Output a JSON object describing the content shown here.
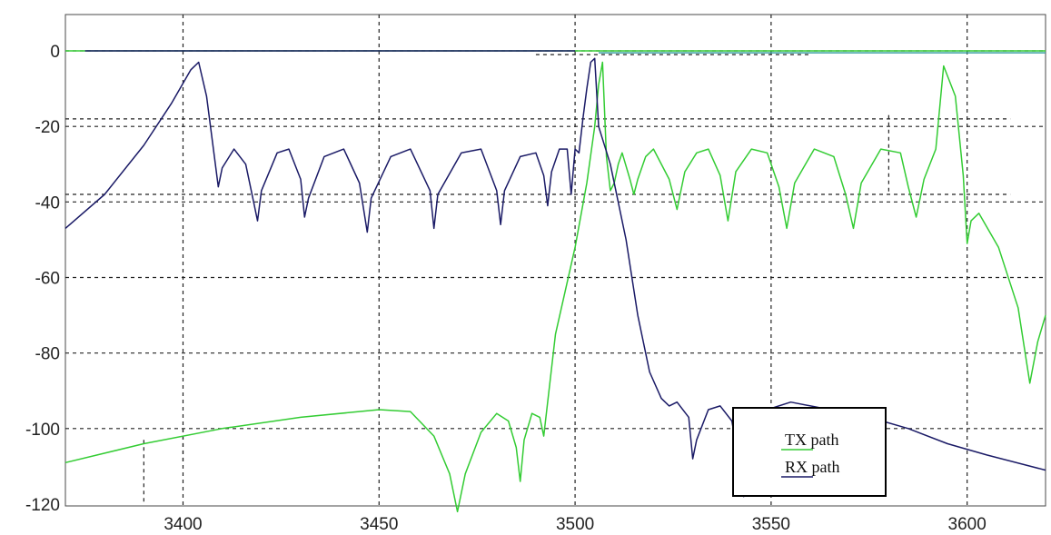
{
  "chart_data": {
    "type": "line",
    "xlim": [
      3370,
      3620
    ],
    "ylim": [
      -120,
      10
    ],
    "xticks": [
      3400,
      3450,
      3500,
      3550,
      3600
    ],
    "yticks": [
      0,
      -20,
      -40,
      -60,
      -80,
      -100,
      -120
    ],
    "grid": true,
    "legend_position": "bottom-right",
    "series": [
      {
        "name": "TX path",
        "color": "#33cc33",
        "points": [
          [
            3370,
            -109
          ],
          [
            3390,
            -104
          ],
          [
            3410,
            -100
          ],
          [
            3430,
            -97
          ],
          [
            3450,
            -95
          ],
          [
            3458,
            -95.5
          ],
          [
            3464,
            -102
          ],
          [
            3468,
            -112
          ],
          [
            3470,
            -122
          ],
          [
            3472,
            -112
          ],
          [
            3476,
            -101
          ],
          [
            3480,
            -96
          ],
          [
            3483,
            -98
          ],
          [
            3485,
            -105
          ],
          [
            3486,
            -114
          ],
          [
            3487,
            -103
          ],
          [
            3489,
            -96
          ],
          [
            3491,
            -97
          ],
          [
            3492,
            -102
          ],
          [
            3495,
            -75
          ],
          [
            3500,
            -52
          ],
          [
            3503,
            -35
          ],
          [
            3505,
            -20
          ],
          [
            3506,
            -9
          ],
          [
            3507,
            -3
          ],
          [
            3508,
            -28
          ],
          [
            3509,
            -37
          ],
          [
            3510,
            -35
          ],
          [
            3511,
            -30
          ],
          [
            3512,
            -27
          ],
          [
            3514,
            -34
          ],
          [
            3515,
            -38
          ],
          [
            3516,
            -34
          ],
          [
            3518,
            -28
          ],
          [
            3520,
            -26
          ],
          [
            3524,
            -34
          ],
          [
            3526,
            -42
          ],
          [
            3528,
            -32
          ],
          [
            3531,
            -27
          ],
          [
            3534,
            -26
          ],
          [
            3537,
            -33
          ],
          [
            3539,
            -45
          ],
          [
            3541,
            -32
          ],
          [
            3545,
            -26
          ],
          [
            3549,
            -27
          ],
          [
            3552,
            -36
          ],
          [
            3554,
            -47
          ],
          [
            3556,
            -35
          ],
          [
            3561,
            -26
          ],
          [
            3566,
            -28
          ],
          [
            3569,
            -38
          ],
          [
            3571,
            -47
          ],
          [
            3573,
            -35
          ],
          [
            3578,
            -26
          ],
          [
            3583,
            -27
          ],
          [
            3585,
            -36
          ],
          [
            3587,
            -44
          ],
          [
            3589,
            -34
          ],
          [
            3592,
            -26
          ],
          [
            3594,
            -4
          ],
          [
            3597,
            -12
          ],
          [
            3599,
            -33
          ],
          [
            3600,
            -51
          ],
          [
            3601,
            -45
          ],
          [
            3603,
            -43
          ],
          [
            3608,
            -52
          ],
          [
            3613,
            -68
          ],
          [
            3616,
            -88
          ],
          [
            3618,
            -77
          ],
          [
            3620,
            -70
          ]
        ]
      },
      {
        "name": "RX path",
        "color": "#1a1a66",
        "points": [
          [
            3370,
            -47
          ],
          [
            3380,
            -38
          ],
          [
            3390,
            -25
          ],
          [
            3397,
            -14
          ],
          [
            3402,
            -5
          ],
          [
            3404,
            -3
          ],
          [
            3406,
            -12
          ],
          [
            3408,
            -28
          ],
          [
            3409,
            -36
          ],
          [
            3410,
            -31
          ],
          [
            3413,
            -26
          ],
          [
            3416,
            -30
          ],
          [
            3418,
            -40
          ],
          [
            3419,
            -45
          ],
          [
            3420,
            -37
          ],
          [
            3424,
            -27
          ],
          [
            3427,
            -26
          ],
          [
            3430,
            -34
          ],
          [
            3431,
            -44
          ],
          [
            3432,
            -39
          ],
          [
            3436,
            -28
          ],
          [
            3441,
            -26
          ],
          [
            3445,
            -35
          ],
          [
            3447,
            -48
          ],
          [
            3448,
            -39
          ],
          [
            3453,
            -28
          ],
          [
            3458,
            -26
          ],
          [
            3463,
            -37
          ],
          [
            3464,
            -47
          ],
          [
            3465,
            -38
          ],
          [
            3471,
            -27
          ],
          [
            3476,
            -26
          ],
          [
            3480,
            -37
          ],
          [
            3481,
            -46
          ],
          [
            3482,
            -37
          ],
          [
            3486,
            -28
          ],
          [
            3490,
            -27
          ],
          [
            3492,
            -33
          ],
          [
            3493,
            -41
          ],
          [
            3494,
            -32
          ],
          [
            3496,
            -26
          ],
          [
            3498,
            -26
          ],
          [
            3499,
            -38
          ],
          [
            3500,
            -26
          ],
          [
            3501,
            -27
          ],
          [
            3502,
            -18
          ],
          [
            3503,
            -10
          ],
          [
            3504,
            -3
          ],
          [
            3505,
            -2
          ],
          [
            3506,
            -20
          ],
          [
            3509,
            -30
          ],
          [
            3513,
            -50
          ],
          [
            3516,
            -70
          ],
          [
            3519,
            -85
          ],
          [
            3522,
            -92
          ],
          [
            3524,
            -94
          ],
          [
            3526,
            -93
          ],
          [
            3529,
            -97
          ],
          [
            3530,
            -108
          ],
          [
            3531,
            -103
          ],
          [
            3534,
            -95
          ],
          [
            3537,
            -94
          ],
          [
            3540,
            -98
          ],
          [
            3542,
            -110
          ],
          [
            3543,
            -118
          ],
          [
            3545,
            -104
          ],
          [
            3549,
            -95
          ],
          [
            3555,
            -93
          ],
          [
            3565,
            -95
          ],
          [
            3575,
            -97
          ],
          [
            3585,
            -100
          ],
          [
            3595,
            -104
          ],
          [
            3605,
            -107
          ],
          [
            3620,
            -111
          ]
        ]
      }
    ],
    "dashed_markers": [
      {
        "x1": 3390,
        "y1": -103,
        "x2": 3390,
        "y2": -120
      },
      {
        "x1": 3400,
        "y1": -100,
        "x2": 3400,
        "y2": -109
      },
      {
        "x1": 3580,
        "y1": -17,
        "x2": 3580,
        "y2": -38
      },
      {
        "x1": 3490,
        "y1": -1,
        "x2": 3560,
        "y2": -1
      },
      {
        "x1": 3370,
        "y1": -18,
        "x2": 3611,
        "y2": -18
      },
      {
        "x1": 3370,
        "y1": -38,
        "x2": 3611,
        "y2": -38
      }
    ]
  }
}
